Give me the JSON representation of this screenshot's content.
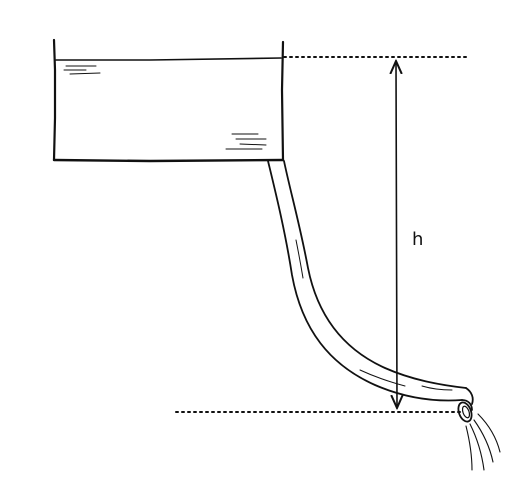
{
  "diagram": {
    "height_label": "h"
  }
}
